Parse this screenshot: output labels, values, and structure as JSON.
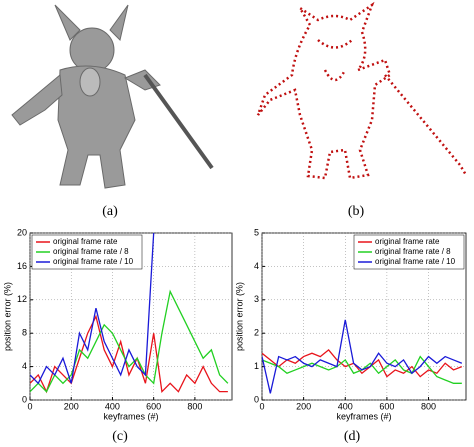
{
  "captions": [
    "(a)",
    "(b)",
    "(c)",
    "(d)"
  ],
  "chart_data": [
    {
      "type": "line",
      "x_label": "keyframes (#)",
      "y_label": "position error (%)",
      "x": [
        0,
        40,
        80,
        120,
        160,
        200,
        240,
        280,
        320,
        360,
        400,
        440,
        480,
        520,
        560,
        600,
        640,
        680,
        720,
        760,
        800,
        840,
        880,
        920,
        960
      ],
      "xlim": [
        0,
        980
      ],
      "xticks": [
        0,
        200,
        400,
        600,
        800
      ],
      "ylim": [
        0,
        20
      ],
      "yticks": [
        0,
        4,
        8,
        12,
        16,
        20
      ],
      "grid": true,
      "legend": "upper-left",
      "series": [
        {
          "name": "original frame rate",
          "color": "#e8141b",
          "values": [
            2,
            3,
            1,
            4,
            3,
            2,
            5,
            8,
            10,
            6,
            4,
            7,
            3,
            5,
            2,
            8,
            1,
            2,
            1,
            3,
            2,
            4,
            2,
            1,
            1
          ]
        },
        {
          "name": "original frame rate / 8",
          "color": "#22d022",
          "values": [
            1,
            2,
            1,
            3,
            2,
            3,
            6,
            5,
            7,
            9,
            8,
            6,
            4,
            5,
            3,
            2,
            8,
            13,
            11,
            9,
            7,
            5,
            6,
            3,
            2
          ]
        },
        {
          "name": "original frame rate / 10",
          "color": "#1a1ad8",
          "values": [
            3,
            2,
            4,
            3,
            5,
            2,
            8,
            6,
            11,
            7,
            5,
            3,
            6,
            4,
            3,
            20,
            null,
            null,
            null,
            null,
            null,
            null,
            null,
            null,
            null
          ]
        }
      ]
    },
    {
      "type": "line",
      "x_label": "keyframes (#)",
      "y_label": "position error (%)",
      "x": [
        0,
        40,
        80,
        120,
        160,
        200,
        240,
        280,
        320,
        360,
        400,
        440,
        480,
        520,
        560,
        600,
        640,
        680,
        720,
        760,
        800,
        840,
        880,
        920,
        960
      ],
      "xlim": [
        0,
        980
      ],
      "xticks": [
        0,
        200,
        400,
        600,
        800
      ],
      "ylim": [
        0,
        5
      ],
      "yticks": [
        0,
        1,
        2,
        3,
        4,
        5
      ],
      "grid": true,
      "legend": "upper-right",
      "series": [
        {
          "name": "original frame rate",
          "color": "#e8141b",
          "values": [
            1.4,
            1.2,
            1.0,
            1.2,
            1.1,
            1.3,
            1.4,
            1.3,
            1.5,
            1.2,
            1.0,
            1.1,
            0.8,
            1.0,
            1.2,
            0.7,
            0.9,
            0.8,
            1.0,
            0.7,
            0.9,
            0.8,
            1.1,
            0.9,
            1.0
          ]
        },
        {
          "name": "original frame rate / 8",
          "color": "#22d022",
          "values": [
            1.2,
            1.1,
            1.0,
            0.8,
            0.9,
            1.0,
            1.1,
            1.0,
            0.9,
            1.0,
            1.2,
            0.8,
            0.9,
            1.1,
            0.8,
            1.0,
            1.2,
            0.9,
            0.8,
            1.3,
            1.0,
            0.7,
            0.6,
            0.5,
            0.5
          ]
        },
        {
          "name": "original frame rate / 10",
          "color": "#1a1ad8",
          "values": [
            1.3,
            0.2,
            1.3,
            1.2,
            1.3,
            1.1,
            1.0,
            1.2,
            1.1,
            1.0,
            2.4,
            1.1,
            0.9,
            1.0,
            1.4,
            1.1,
            1.0,
            1.2,
            0.8,
            1.0,
            1.3,
            1.1,
            1.3,
            1.2,
            1.1
          ]
        }
      ]
    }
  ]
}
